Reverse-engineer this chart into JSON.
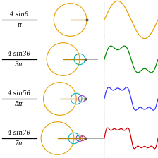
{
  "rows": [
    {
      "label_lines": [
        "4 sinθ",
        "π"
      ],
      "n_terms": 1,
      "wave_color": "#e8a000",
      "circle_colors": [
        "#e8a000"
      ],
      "amplitudes": [
        1.2732395447351628
      ],
      "snap_theta": 0.0
    },
    {
      "label_lines": [
        "4 sin3θ",
        "3π"
      ],
      "n_terms": 2,
      "wave_color": "#008800",
      "circle_colors": [
        "#e8a000",
        "#00b0b0"
      ],
      "amplitudes": [
        1.2732395447351628,
        0.4244131815783876
      ],
      "snap_theta": 0.0
    },
    {
      "label_lines": [
        "4 sin5θ",
        "5π"
      ],
      "n_terms": 3,
      "wave_color": "#3333ff",
      "circle_colors": [
        "#e8a000",
        "#00b0b0",
        "#8844cc"
      ],
      "amplitudes": [
        1.2732395447351628,
        0.4244131815783876,
        0.25464790894703254
      ],
      "snap_theta": 0.0
    },
    {
      "label_lines": [
        "4 sin7θ",
        "7π"
      ],
      "n_terms": 4,
      "wave_color": "#cc0000",
      "circle_colors": [
        "#e8a000",
        "#00b0b0",
        "#8844cc",
        "#cc4444"
      ],
      "amplitudes": [
        1.2732395447351628,
        0.4244131815783876,
        0.25464790894703254,
        0.18189136353359475
      ],
      "snap_theta": 0.0
    }
  ],
  "background": "#ffffff",
  "figsize": [
    2.24,
    2.24
  ],
  "dpi": 100
}
